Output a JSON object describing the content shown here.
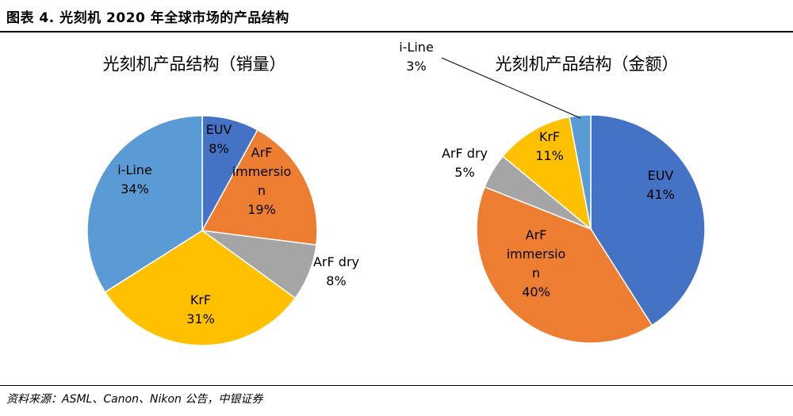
{
  "header": {
    "figure_title": "图表 4. 光刻机 2020 年全球市场的产品结构"
  },
  "footer": {
    "source": "资料来源：ASML、Canon、Nikon 公告，中银证券"
  },
  "colors": {
    "EUV": "#4472C4",
    "ArF immersion": "#ED7D31",
    "ArF dry": "#A5A5A5",
    "KrF": "#FFC000",
    "i-Line": "#5B9BD5"
  },
  "chart_data": [
    {
      "type": "pie",
      "title": "光刻机产品结构（销量）",
      "slices": [
        {
          "name": "EUV",
          "value": 8,
          "label_lines": [
            "EUV",
            "8%"
          ]
        },
        {
          "name": "ArF immersion",
          "value": 19,
          "label_lines": [
            "ArF",
            "immersio",
            "n",
            "19%"
          ]
        },
        {
          "name": "ArF dry",
          "value": 8,
          "label_lines": [
            "ArF dry",
            "8%"
          ]
        },
        {
          "name": "KrF",
          "value": 31,
          "label_lines": [
            "KrF",
            "31%"
          ]
        },
        {
          "name": "i-Line",
          "value": 34,
          "label_lines": [
            "i-Line",
            "34%"
          ]
        }
      ]
    },
    {
      "type": "pie",
      "title": "光刻机产品结构（金额）",
      "slices": [
        {
          "name": "EUV",
          "value": 41,
          "label_lines": [
            "EUV",
            "41%"
          ]
        },
        {
          "name": "ArF immersion",
          "value": 40,
          "label_lines": [
            "ArF",
            "immersio",
            "n",
            "40%"
          ]
        },
        {
          "name": "ArF dry",
          "value": 5,
          "label_lines": [
            "ArF dry",
            "5%"
          ]
        },
        {
          "name": "KrF",
          "value": 11,
          "label_lines": [
            "KrF",
            "11%"
          ]
        },
        {
          "name": "i-Line",
          "value": 3,
          "label_lines": [
            "i-Line",
            "3%"
          ]
        }
      ]
    }
  ]
}
